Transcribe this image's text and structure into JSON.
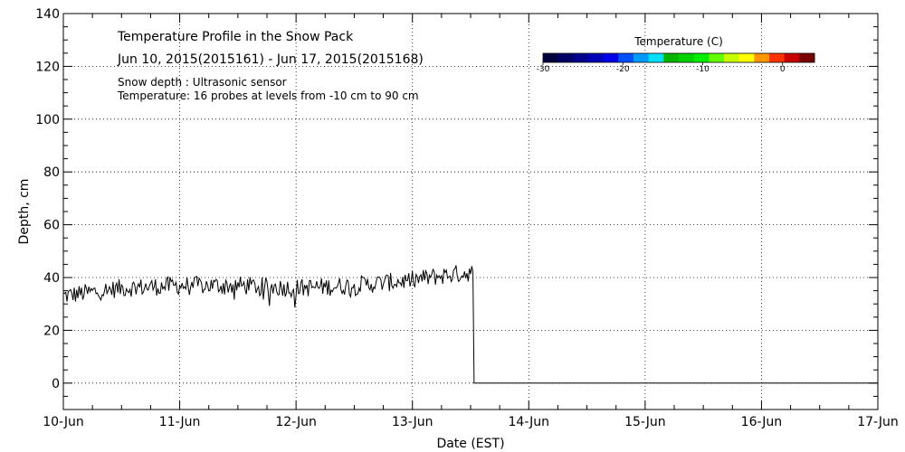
{
  "chart_data": {
    "type": "line",
    "title": "Temperature Profile in the Snow Pack",
    "subtitle": "Jun 10, 2015(2015161) - Jun 17, 2015(2015168)",
    "notes": [
      "Snow depth : Ultrasonic sensor",
      "Temperature: 16 probes at levels from -10 cm to 90 cm"
    ],
    "xlabel": "Date (EST)",
    "ylabel": "Depth, cm",
    "x_ticks": [
      "10-Jun",
      "11-Jun",
      "12-Jun",
      "13-Jun",
      "14-Jun",
      "15-Jun",
      "16-Jun",
      "17-Jun"
    ],
    "xlim_days": [
      0,
      7
    ],
    "y_ticks": [
      0,
      20,
      40,
      60,
      80,
      100,
      120,
      140
    ],
    "ylim": [
      -10,
      140
    ],
    "grid": true,
    "series": [
      {
        "name": "Snow depth",
        "description": "noisy depth readings that rise slowly from about 33 cm to about 42 cm, then drop to 0 at about 13-Jun 12:30",
        "x_days": [
          0,
          0.5,
          1,
          1.5,
          2,
          2.5,
          3,
          3.3,
          3.52,
          3.53,
          7
        ],
        "y": [
          33,
          36,
          37,
          37,
          36,
          37,
          39,
          41,
          42,
          0,
          0
        ],
        "noise_amplitude_cm": 3.5
      }
    ],
    "colorbar": {
      "title": "Temperature (C)",
      "tick_labels": [
        "-30",
        "-20",
        "-10",
        "0"
      ],
      "tick_values": [
        -30,
        -20,
        -10,
        0
      ],
      "range": [
        -30,
        4
      ],
      "colors": [
        "#00003c",
        "#000064",
        "#00008c",
        "#0000b4",
        "#0000e6",
        "#0050ff",
        "#009bff",
        "#00e1ff",
        "#00b400",
        "#00d200",
        "#00f000",
        "#64ff00",
        "#c8ff00",
        "#ffff00",
        "#ff9600",
        "#ff3200",
        "#c80000",
        "#780000"
      ]
    }
  }
}
